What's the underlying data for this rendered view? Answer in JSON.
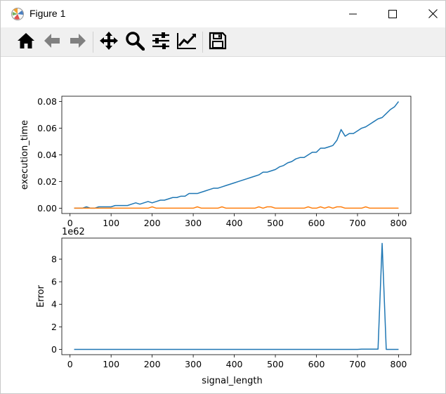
{
  "window": {
    "title": "Figure 1",
    "controls": {
      "minimize": "minimize",
      "maximize": "maximize",
      "close": "close"
    }
  },
  "toolbar": {
    "buttons": [
      {
        "icon": "home-icon",
        "name": "home-button"
      },
      {
        "icon": "arrow-left-icon",
        "name": "back-button"
      },
      {
        "icon": "arrow-right-icon",
        "name": "forward-button"
      },
      {
        "icon": "move-icon",
        "name": "pan-button"
      },
      {
        "icon": "magnifier-icon",
        "name": "zoom-button"
      },
      {
        "icon": "sliders-icon",
        "name": "configure-subplots-button"
      },
      {
        "icon": "trend-icon",
        "name": "edit-axes-button"
      },
      {
        "icon": "floppy-disk-icon",
        "name": "save-button"
      }
    ]
  },
  "colors": {
    "series_blue": "#1f77b4",
    "series_orange": "#ff7f0e"
  },
  "chart_data": [
    {
      "type": "line",
      "ylabel": "execution_time",
      "xlabel": "",
      "xlim": [
        -20,
        830
      ],
      "ylim": [
        -0.004,
        0.084
      ],
      "xticks": [
        0,
        100,
        200,
        300,
        400,
        500,
        600,
        700,
        800
      ],
      "yticks": [
        0.0,
        0.02,
        0.04,
        0.06,
        0.08
      ],
      "ytick_labels": [
        "0.00",
        "0.02",
        "0.04",
        "0.06",
        "0.08"
      ],
      "x": [
        10,
        20,
        30,
        40,
        50,
        60,
        70,
        80,
        90,
        100,
        110,
        120,
        130,
        140,
        150,
        160,
        170,
        180,
        190,
        200,
        210,
        220,
        230,
        240,
        250,
        260,
        270,
        280,
        290,
        300,
        310,
        320,
        330,
        340,
        350,
        360,
        370,
        380,
        390,
        400,
        410,
        420,
        430,
        440,
        450,
        460,
        470,
        480,
        490,
        500,
        510,
        520,
        530,
        540,
        550,
        560,
        570,
        580,
        590,
        600,
        610,
        620,
        630,
        640,
        650,
        660,
        670,
        680,
        690,
        700,
        710,
        720,
        730,
        740,
        750,
        760,
        770,
        780,
        790,
        800
      ],
      "series": [
        {
          "color": "#1f77b4",
          "values": [
            0.0,
            0.0,
            0.0,
            0.001,
            0.0,
            0.0,
            0.001,
            0.001,
            0.001,
            0.001,
            0.002,
            0.002,
            0.002,
            0.002,
            0.003,
            0.004,
            0.003,
            0.004,
            0.005,
            0.004,
            0.005,
            0.006,
            0.006,
            0.007,
            0.008,
            0.008,
            0.009,
            0.009,
            0.011,
            0.011,
            0.011,
            0.012,
            0.013,
            0.014,
            0.015,
            0.015,
            0.016,
            0.017,
            0.018,
            0.019,
            0.02,
            0.021,
            0.022,
            0.023,
            0.024,
            0.025,
            0.027,
            0.027,
            0.028,
            0.029,
            0.031,
            0.032,
            0.034,
            0.035,
            0.037,
            0.038,
            0.038,
            0.04,
            0.042,
            0.042,
            0.045,
            0.045,
            0.046,
            0.047,
            0.051,
            0.059,
            0.054,
            0.056,
            0.056,
            0.058,
            0.06,
            0.061,
            0.063,
            0.065,
            0.067,
            0.068,
            0.071,
            0.074,
            0.076,
            0.08
          ]
        },
        {
          "color": "#ff7f0e",
          "values": [
            0,
            0,
            0,
            0,
            0,
            0,
            0,
            0,
            0,
            0,
            0,
            0,
            0,
            0,
            0,
            0,
            0,
            0,
            0,
            0.001,
            0,
            0,
            0,
            0,
            0,
            0,
            0,
            0,
            0,
            0,
            0.001,
            0,
            0,
            0,
            0,
            0,
            0.001,
            0,
            0,
            0,
            0,
            0,
            0,
            0,
            0,
            0.001,
            0,
            0.001,
            0.001,
            0,
            0,
            0,
            0,
            0,
            0,
            0,
            0,
            0.001,
            0,
            0,
            0.001,
            0,
            0.001,
            0,
            0.001,
            0.001,
            0,
            0,
            0,
            0,
            0,
            0.001,
            0,
            0,
            0,
            0,
            0,
            0,
            0,
            0
          ]
        }
      ]
    },
    {
      "type": "line",
      "ylabel": "Error",
      "xlabel": "signal_length",
      "offset_label": "1e62",
      "xlim": [
        -20,
        830
      ],
      "ylim": [
        -0.47,
        9.87
      ],
      "xticks": [
        0,
        100,
        200,
        300,
        400,
        500,
        600,
        700,
        800
      ],
      "yticks": [
        0,
        2,
        4,
        6,
        8
      ],
      "ytick_labels": [
        "0",
        "2",
        "4",
        "6",
        "8"
      ],
      "x": [
        10,
        700,
        710,
        750,
        760,
        770,
        800
      ],
      "series": [
        {
          "color": "#1f77b4",
          "values": [
            0.0,
            0.0,
            0.02,
            0.02,
            9.4,
            0.0,
            0.0
          ]
        }
      ]
    }
  ]
}
